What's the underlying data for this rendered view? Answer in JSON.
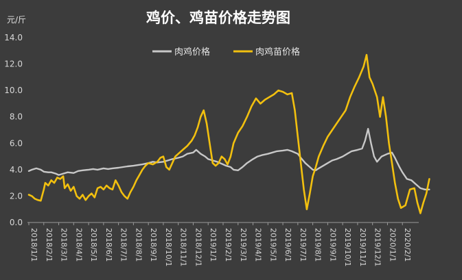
{
  "chart_data": {
    "type": "line",
    "title": "鸡价、鸡苗价格走势图",
    "ylabel": "元/斤",
    "xlabel": "",
    "ylim": [
      0,
      14
    ],
    "yticks": [
      "0.0",
      "2.0",
      "4.0",
      "6.0",
      "8.0",
      "10.0",
      "12.0",
      "14.0"
    ],
    "grid": false,
    "legend": "top-center",
    "categories": [
      "2018/1/1",
      "2018/2/1",
      "2018/3/1",
      "2018/4/1",
      "2018/5/1",
      "2018/6/1",
      "2018/7/1",
      "2018/8/1",
      "2018/9/1",
      "2018/10/1",
      "2018/11/1",
      "2018/12/1",
      "2019/1/1",
      "2019/2/1",
      "2019/3/1",
      "2019/4/1",
      "2019/5/1",
      "2019/6/1",
      "2019/7/1",
      "2019/8/1",
      "2019/9/1",
      "2019/10/1",
      "2019/11/1",
      "2019/12/1",
      "2020/1/1",
      "2020/2/1"
    ],
    "series": [
      {
        "name": "肉鸡价格",
        "color": "#c8c8c8",
        "points": [
          [
            0,
            3.9
          ],
          [
            0.2,
            4.0
          ],
          [
            0.5,
            4.1
          ],
          [
            0.8,
            4.0
          ],
          [
            1.0,
            3.85
          ],
          [
            1.3,
            3.8
          ],
          [
            1.5,
            3.8
          ],
          [
            1.8,
            3.7
          ],
          [
            2.0,
            3.6
          ],
          [
            2.3,
            3.7
          ],
          [
            2.6,
            3.8
          ],
          [
            3.0,
            3.75
          ],
          [
            3.3,
            3.9
          ],
          [
            3.6,
            3.95
          ],
          [
            4.0,
            4.0
          ],
          [
            4.3,
            4.05
          ],
          [
            4.6,
            4.0
          ],
          [
            5.0,
            4.1
          ],
          [
            5.3,
            4.05
          ],
          [
            5.6,
            4.1
          ],
          [
            6.0,
            4.15
          ],
          [
            6.3,
            4.2
          ],
          [
            6.6,
            4.25
          ],
          [
            7.0,
            4.3
          ],
          [
            7.3,
            4.35
          ],
          [
            7.6,
            4.4
          ],
          [
            8.0,
            4.5
          ],
          [
            8.3,
            4.6
          ],
          [
            8.6,
            4.55
          ],
          [
            9.0,
            4.6
          ],
          [
            9.3,
            4.7
          ],
          [
            9.6,
            4.8
          ],
          [
            10.0,
            4.9
          ],
          [
            10.3,
            5.0
          ],
          [
            10.6,
            5.2
          ],
          [
            11.0,
            5.3
          ],
          [
            11.2,
            5.5
          ],
          [
            11.5,
            5.2
          ],
          [
            11.8,
            5.0
          ],
          [
            12.0,
            4.8
          ],
          [
            12.3,
            4.7
          ],
          [
            12.6,
            4.6
          ],
          [
            13.0,
            4.4
          ],
          [
            13.2,
            4.3
          ],
          [
            13.5,
            4.2
          ],
          [
            13.7,
            4.0
          ],
          [
            14.0,
            3.95
          ],
          [
            14.3,
            4.2
          ],
          [
            14.6,
            4.5
          ],
          [
            15.0,
            4.8
          ],
          [
            15.3,
            5.0
          ],
          [
            15.6,
            5.1
          ],
          [
            16.0,
            5.2
          ],
          [
            16.3,
            5.3
          ],
          [
            16.6,
            5.4
          ],
          [
            17.0,
            5.45
          ],
          [
            17.3,
            5.5
          ],
          [
            17.6,
            5.4
          ],
          [
            18.0,
            5.2
          ],
          [
            18.2,
            4.9
          ],
          [
            18.5,
            4.5
          ],
          [
            18.8,
            4.2
          ],
          [
            19.0,
            4.0
          ],
          [
            19.2,
            3.95
          ],
          [
            19.4,
            4.1
          ],
          [
            19.7,
            4.3
          ],
          [
            20.0,
            4.5
          ],
          [
            20.3,
            4.7
          ],
          [
            20.6,
            4.8
          ],
          [
            21.0,
            5.0
          ],
          [
            21.3,
            5.2
          ],
          [
            21.6,
            5.4
          ],
          [
            22.0,
            5.5
          ],
          [
            22.3,
            5.6
          ],
          [
            22.5,
            6.2
          ],
          [
            22.7,
            7.1
          ],
          [
            22.9,
            6.0
          ],
          [
            23.1,
            5.0
          ],
          [
            23.3,
            4.6
          ],
          [
            23.6,
            5.0
          ],
          [
            24.0,
            5.2
          ],
          [
            24.3,
            5.3
          ],
          [
            24.5,
            4.9
          ],
          [
            24.8,
            4.2
          ],
          [
            25.0,
            3.8
          ],
          [
            25.3,
            3.3
          ],
          [
            25.6,
            3.2
          ],
          [
            25.9,
            2.9
          ],
          [
            26.2,
            2.6
          ],
          [
            26.5,
            2.5
          ],
          [
            26.8,
            2.5
          ]
        ]
      },
      {
        "name": "肉鸡苗价格",
        "color": "#f2c00f",
        "points": [
          [
            0,
            2.1
          ],
          [
            0.2,
            2.0
          ],
          [
            0.4,
            1.8
          ],
          [
            0.6,
            1.7
          ],
          [
            0.8,
            1.65
          ],
          [
            1.0,
            2.5
          ],
          [
            1.1,
            3.0
          ],
          [
            1.3,
            2.8
          ],
          [
            1.5,
            3.2
          ],
          [
            1.7,
            3.0
          ],
          [
            1.9,
            3.4
          ],
          [
            2.1,
            3.3
          ],
          [
            2.3,
            3.5
          ],
          [
            2.4,
            2.6
          ],
          [
            2.6,
            2.9
          ],
          [
            2.8,
            2.4
          ],
          [
            3.0,
            2.7
          ],
          [
            3.2,
            2.0
          ],
          [
            3.4,
            1.8
          ],
          [
            3.6,
            2.1
          ],
          [
            3.8,
            1.7
          ],
          [
            4.0,
            2.0
          ],
          [
            4.2,
            2.2
          ],
          [
            4.4,
            1.9
          ],
          [
            4.6,
            2.6
          ],
          [
            4.8,
            2.7
          ],
          [
            5.0,
            2.5
          ],
          [
            5.2,
            2.8
          ],
          [
            5.4,
            2.6
          ],
          [
            5.6,
            2.5
          ],
          [
            5.8,
            3.2
          ],
          [
            6.0,
            2.8
          ],
          [
            6.2,
            2.3
          ],
          [
            6.4,
            2.0
          ],
          [
            6.6,
            1.8
          ],
          [
            6.8,
            2.3
          ],
          [
            7.0,
            2.7
          ],
          [
            7.2,
            3.2
          ],
          [
            7.4,
            3.6
          ],
          [
            7.6,
            4.0
          ],
          [
            7.8,
            4.3
          ],
          [
            8.0,
            4.5
          ],
          [
            8.3,
            4.4
          ],
          [
            8.6,
            4.6
          ],
          [
            8.8,
            4.9
          ],
          [
            9.0,
            5.0
          ],
          [
            9.2,
            4.2
          ],
          [
            9.4,
            4.0
          ],
          [
            9.6,
            4.5
          ],
          [
            9.8,
            5.0
          ],
          [
            10.0,
            5.2
          ],
          [
            10.3,
            5.5
          ],
          [
            10.6,
            5.8
          ],
          [
            10.9,
            6.2
          ],
          [
            11.1,
            6.6
          ],
          [
            11.3,
            7.2
          ],
          [
            11.5,
            8.0
          ],
          [
            11.7,
            8.5
          ],
          [
            11.9,
            7.5
          ],
          [
            12.1,
            6.0
          ],
          [
            12.3,
            4.5
          ],
          [
            12.5,
            4.3
          ],
          [
            12.7,
            4.5
          ],
          [
            12.9,
            5.0
          ],
          [
            13.1,
            4.8
          ],
          [
            13.3,
            4.4
          ],
          [
            13.5,
            5.0
          ],
          [
            13.7,
            6.0
          ],
          [
            14.0,
            6.8
          ],
          [
            14.3,
            7.3
          ],
          [
            14.6,
            8.0
          ],
          [
            14.9,
            8.8
          ],
          [
            15.2,
            9.4
          ],
          [
            15.5,
            9.0
          ],
          [
            15.8,
            9.3
          ],
          [
            16.1,
            9.5
          ],
          [
            16.4,
            9.7
          ],
          [
            16.7,
            10.0
          ],
          [
            17.0,
            9.9
          ],
          [
            17.3,
            9.7
          ],
          [
            17.6,
            9.8
          ],
          [
            17.8,
            8.5
          ],
          [
            18.0,
            6.5
          ],
          [
            18.2,
            4.5
          ],
          [
            18.4,
            2.5
          ],
          [
            18.6,
            1.0
          ],
          [
            18.8,
            2.2
          ],
          [
            19.0,
            3.5
          ],
          [
            19.2,
            4.2
          ],
          [
            19.4,
            5.0
          ],
          [
            19.7,
            5.8
          ],
          [
            20.0,
            6.5
          ],
          [
            20.3,
            7.0
          ],
          [
            20.6,
            7.5
          ],
          [
            20.9,
            8.0
          ],
          [
            21.2,
            8.5
          ],
          [
            21.5,
            9.5
          ],
          [
            21.8,
            10.3
          ],
          [
            22.1,
            11.0
          ],
          [
            22.4,
            11.8
          ],
          [
            22.6,
            12.7
          ],
          [
            22.8,
            11.0
          ],
          [
            23.0,
            10.5
          ],
          [
            23.3,
            9.5
          ],
          [
            23.5,
            8.0
          ],
          [
            23.7,
            9.5
          ],
          [
            23.9,
            8.0
          ],
          [
            24.1,
            6.0
          ],
          [
            24.3,
            4.5
          ],
          [
            24.5,
            3.0
          ],
          [
            24.7,
            1.8
          ],
          [
            24.9,
            1.1
          ],
          [
            25.2,
            1.3
          ],
          [
            25.5,
            2.5
          ],
          [
            25.8,
            2.6
          ],
          [
            26.0,
            1.5
          ],
          [
            26.2,
            0.7
          ],
          [
            26.4,
            1.5
          ],
          [
            26.6,
            2.2
          ],
          [
            26.8,
            3.3
          ]
        ]
      }
    ]
  }
}
